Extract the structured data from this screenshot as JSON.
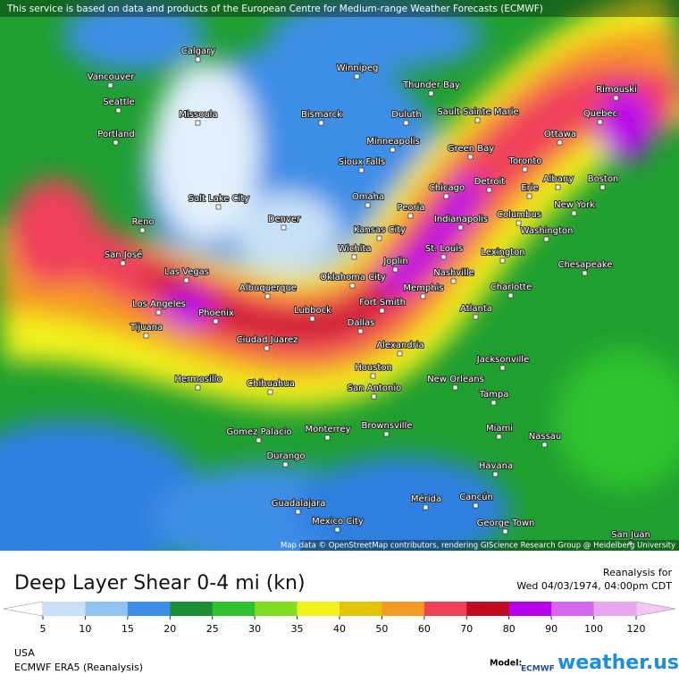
{
  "header": {
    "notice": "This service is based on data and products of the European Centre for Medium-range Weather Forecasts (ECMWF)"
  },
  "map": {
    "credit": "Map data © OpenStreetMap contributors, rendering GIScience Research Group @ Heidelberg University",
    "cities": [
      "Calgary",
      "Winnipeg",
      "Vancouver",
      "Thunder Bay",
      "Seattle",
      "Missoula",
      "Bismarck",
      "Duluth",
      "Sault Sainte Marie",
      "Rimouski",
      "Quebec",
      "Portland",
      "Ottawa",
      "Minneapolis",
      "Green Bay",
      "Toronto",
      "Sioux Falls",
      "Albany",
      "Boston",
      "Detroit",
      "Erie",
      "Chicago",
      "Salt Lake City",
      "Omaha",
      "Peoria",
      "New York",
      "Indianapolis",
      "Columbus",
      "Denver",
      "Reno",
      "Kansas City",
      "Washington",
      "San José",
      "Wichita",
      "St. Louis",
      "Lexington",
      "Joplin",
      "Chesapeake",
      "Las Vegas",
      "Oklahoma City",
      "Nashville",
      "Albuquerque",
      "Charlotte",
      "Memphis",
      "Los Angeles",
      "Fort Smith",
      "Lubbock",
      "Phoenix",
      "Atlanta",
      "Dallas",
      "Tijuana",
      "Ciudad Juarez",
      "Alexandria",
      "Jacksonville",
      "Houston",
      "Hermosillo",
      "San Antonio",
      "New Orleans",
      "Chihuahua",
      "Tampa",
      "Brownsville",
      "Monterrey",
      "Miami",
      "Gomez Palacio",
      "Nassau",
      "Durango",
      "Havana",
      "Mérida",
      "Cancún",
      "Guadalajara",
      "George Town",
      "Mexico City",
      "San Juan"
    ]
  },
  "legend": {
    "title": "Deep Layer Shear 0-4 mi (kn)",
    "valid_label": "Reanalysis for",
    "valid_time": "Wed 04/03/1974, 04:00pm CDT",
    "colorbar": {
      "ticks": [
        5,
        10,
        15,
        20,
        25,
        30,
        35,
        40,
        50,
        60,
        70,
        80,
        90,
        100,
        120
      ],
      "colors": [
        "#c8e1f6",
        "#90c3ef",
        "#3c8ee6",
        "#1b8f33",
        "#2fc22f",
        "#7fde1f",
        "#f2f21a",
        "#e3c400",
        "#f59a22",
        "#f0405a",
        "#c40a20",
        "#b800ee",
        "#d466ef",
        "#e8a6f0"
      ],
      "under_color": "#ffffff",
      "over_color": "#f4c8f4"
    }
  },
  "footer": {
    "region": "USA",
    "model": "ECMWF ERA5 (Reanalysis)",
    "model_label": "Model:",
    "model_logo": "ECMWF",
    "brand": "weather.us"
  }
}
